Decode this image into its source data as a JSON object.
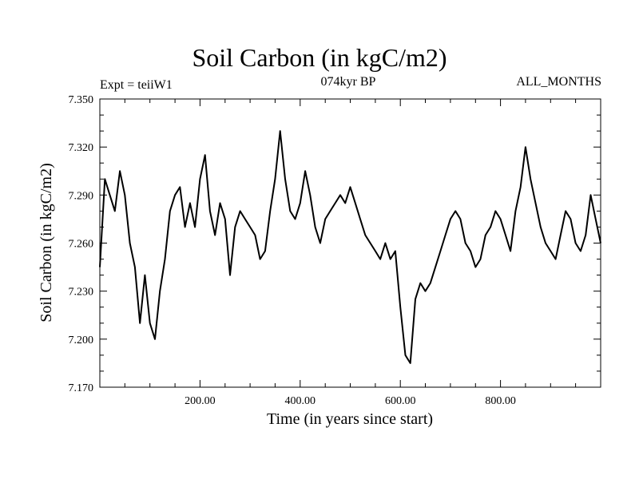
{
  "chart_data": {
    "type": "line",
    "title": "Soil Carbon (in kgC/m2)",
    "subtitle": "074kyr BP",
    "annotation_left": "Expt = teiiW1",
    "annotation_right": "ALL_MONTHS",
    "xlabel": "Time (in years since start)",
    "ylabel": "Soil Carbon (in kgC/m2)",
    "xlim": [
      0,
      1000
    ],
    "ylim": [
      7.17,
      7.35
    ],
    "x_ticks": [
      200,
      400,
      600,
      800
    ],
    "x_tick_labels": [
      "200.00",
      "400.00",
      "600.00",
      "800.00"
    ],
    "y_ticks": [
      7.17,
      7.2,
      7.23,
      7.26,
      7.29,
      7.32,
      7.35
    ],
    "y_tick_labels": [
      "7.170",
      "7.200",
      "7.230",
      "7.260",
      "7.290",
      "7.320",
      "7.350"
    ],
    "grid": false,
    "line_color": "#000000",
    "series": [
      {
        "x": [
          0,
          10,
          20,
          30,
          40,
          50,
          60,
          70,
          80,
          90,
          100,
          110,
          120,
          130,
          140,
          150,
          160,
          170,
          180,
          190,
          200,
          210,
          220,
          230,
          240,
          250,
          260,
          270,
          280,
          290,
          300,
          310,
          320,
          330,
          340,
          350,
          360,
          370,
          380,
          390,
          400,
          410,
          420,
          430,
          440,
          450,
          460,
          470,
          480,
          490,
          500,
          510,
          520,
          530,
          540,
          550,
          560,
          570,
          580,
          590,
          600,
          610,
          620,
          630,
          640,
          650,
          660,
          670,
          680,
          690,
          700,
          710,
          720,
          730,
          740,
          750,
          760,
          770,
          780,
          790,
          800,
          810,
          820,
          830,
          840,
          850,
          860,
          870,
          880,
          890,
          900,
          910,
          920,
          930,
          940,
          950,
          960,
          970,
          980,
          990,
          1000
        ],
        "values": [
          7.245,
          7.3,
          7.29,
          7.28,
          7.305,
          7.29,
          7.26,
          7.245,
          7.21,
          7.24,
          7.21,
          7.2,
          7.23,
          7.25,
          7.28,
          7.29,
          7.295,
          7.27,
          7.285,
          7.27,
          7.3,
          7.315,
          7.28,
          7.265,
          7.285,
          7.275,
          7.24,
          7.27,
          7.28,
          7.275,
          7.27,
          7.265,
          7.25,
          7.255,
          7.28,
          7.3,
          7.33,
          7.3,
          7.28,
          7.275,
          7.285,
          7.305,
          7.29,
          7.27,
          7.26,
          7.275,
          7.28,
          7.285,
          7.29,
          7.285,
          7.295,
          7.285,
          7.275,
          7.265,
          7.26,
          7.255,
          7.25,
          7.26,
          7.25,
          7.255,
          7.22,
          7.19,
          7.185,
          7.225,
          7.235,
          7.23,
          7.235,
          7.245,
          7.255,
          7.265,
          7.275,
          7.28,
          7.275,
          7.26,
          7.255,
          7.245,
          7.25,
          7.265,
          7.27,
          7.28,
          7.275,
          7.265,
          7.255,
          7.28,
          7.295,
          7.32,
          7.3,
          7.285,
          7.27,
          7.26,
          7.255,
          7.25,
          7.265,
          7.28,
          7.275,
          7.26,
          7.255,
          7.265,
          7.29,
          7.275,
          7.26
        ]
      }
    ]
  }
}
